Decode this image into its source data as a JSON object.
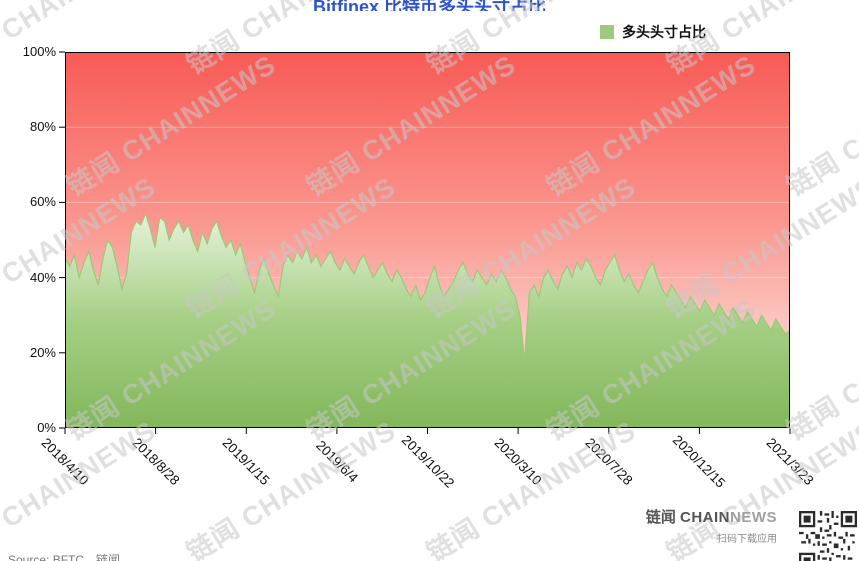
{
  "title": {
    "text": "Bitfinex 比特币多头头寸占比"
  },
  "legend": {
    "label": "多头头寸占比",
    "swatch_color": "#9dca7f"
  },
  "chart_data": {
    "type": "area",
    "series_name": "多头头寸占比",
    "title": "Bitfinex 比特币多头头寸占比",
    "x_tick_labels": [
      "2018/4/10",
      "2018/8/28",
      "2019/1/15",
      "2019/6/4",
      "2019/10/22",
      "2020/3/10",
      "2020/7/28",
      "2020/12/15",
      "2021/3/23"
    ],
    "y_tick_labels": [
      "0%",
      "20%",
      "40%",
      "60%",
      "80%",
      "100%"
    ],
    "ylim": [
      0,
      100
    ],
    "grid": "faint horizontal lines at 20/40/60/80",
    "legend_position": "top-right",
    "values": [
      45,
      43,
      46,
      40,
      44,
      47,
      42,
      38,
      45,
      50,
      48,
      43,
      37,
      41,
      52,
      55,
      54,
      57,
      53,
      48,
      56,
      55,
      50,
      53,
      55,
      52,
      54,
      50,
      47,
      52,
      49,
      53,
      55,
      51,
      48,
      50,
      46,
      49,
      44,
      40,
      36,
      42,
      45,
      41,
      38,
      35,
      43,
      46,
      44,
      47,
      45,
      48,
      44,
      46,
      43,
      45,
      47,
      44,
      42,
      45,
      43,
      41,
      44,
      46,
      43,
      40,
      42,
      44,
      41,
      39,
      42,
      40,
      37,
      35,
      38,
      34,
      36,
      40,
      43,
      38,
      35,
      37,
      39,
      42,
      44,
      41,
      39,
      42,
      40,
      38,
      41,
      39,
      42,
      40,
      37,
      35,
      30,
      18,
      36,
      38,
      35,
      40,
      42,
      39,
      37,
      41,
      43,
      40,
      44,
      42,
      45,
      43,
      40,
      38,
      42,
      44,
      46,
      42,
      39,
      41,
      38,
      36,
      39,
      42,
      44,
      40,
      37,
      35,
      38,
      36,
      34,
      32,
      35,
      33,
      31,
      34,
      32,
      30,
      33,
      31,
      29,
      32,
      30,
      28,
      31,
      29,
      27,
      30,
      28,
      26,
      29,
      27,
      25,
      26
    ],
    "colors": {
      "area_top": "#e6f2d8",
      "area_mid": "#a5cf85",
      "area_bottom": "#82b75a",
      "area_line": "#9cc878",
      "bg_top": "#f85a55",
      "bg_mid": "#fa968e",
      "bg_low": "#fccfc9",
      "bg_bottom": "#fdeae6",
      "axis": "#000000"
    }
  },
  "watermark": {
    "text": "链闻 CHAINNEWS"
  },
  "footer": {
    "source": "Source: BFTC，链闻",
    "brand_cn": "链闻 ",
    "brand_en_bold": "CHAIN",
    "brand_en_light": "NEWS",
    "qr_caption": "扫码下载应用"
  }
}
